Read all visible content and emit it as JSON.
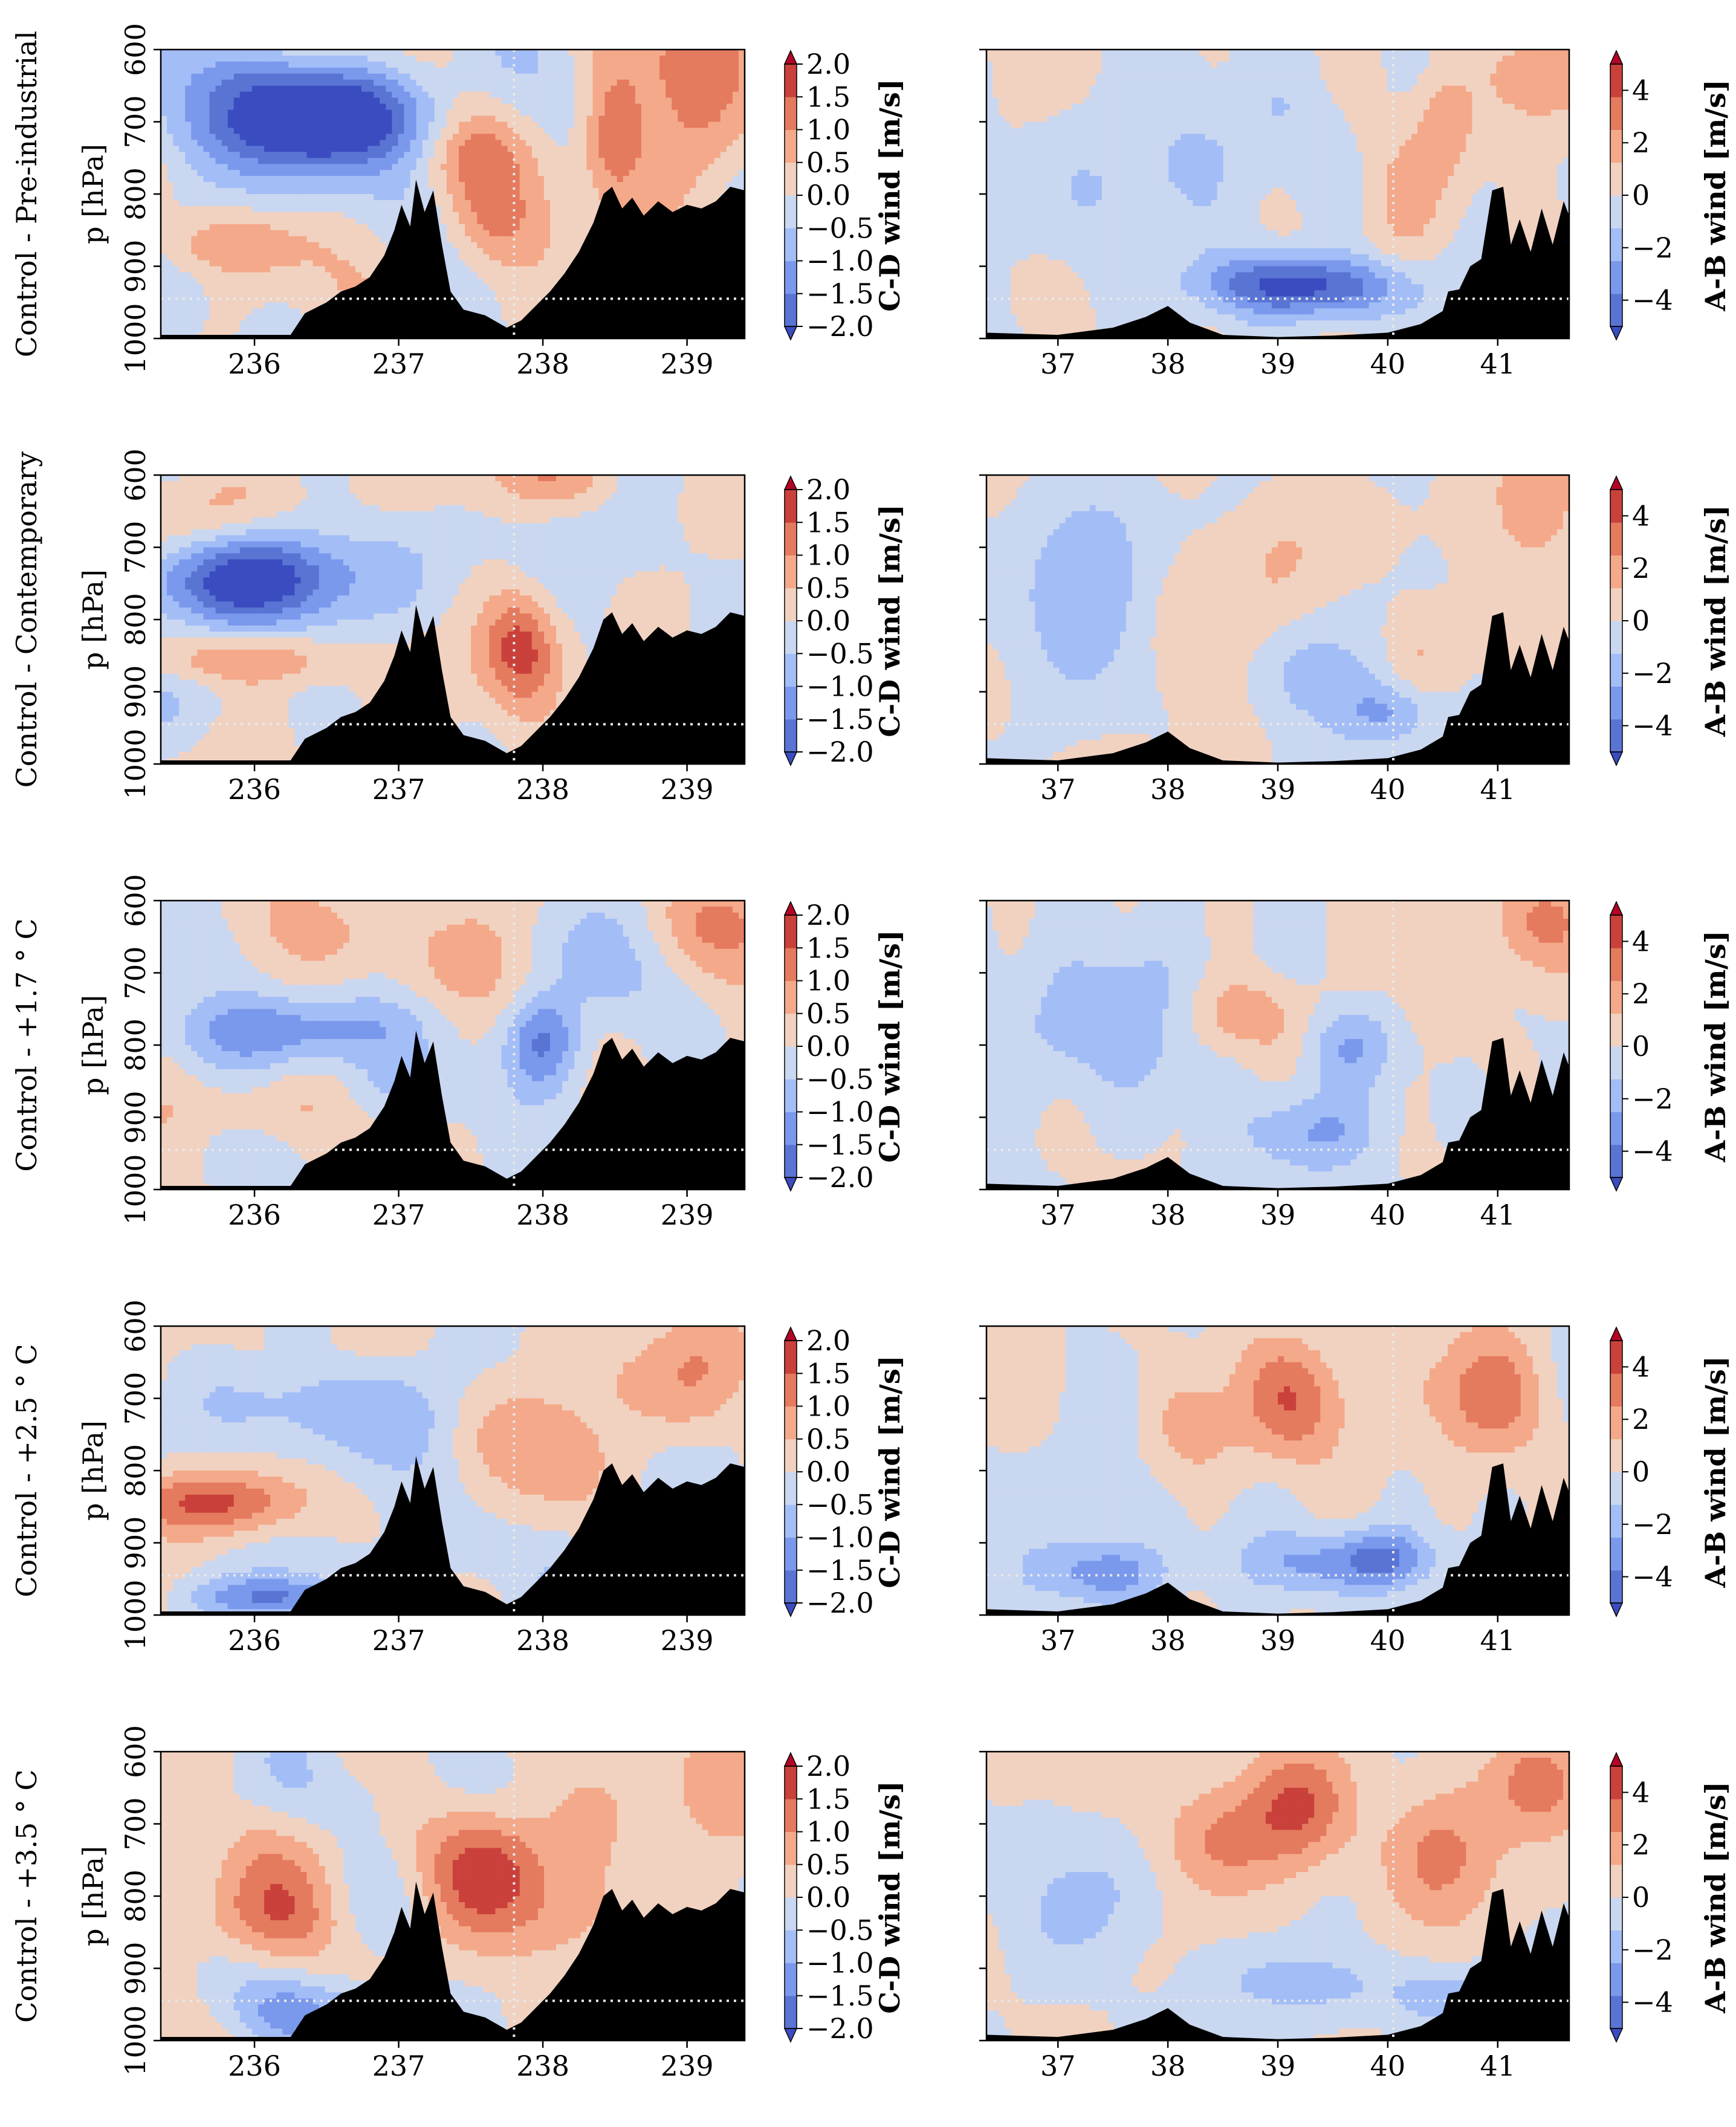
{
  "figure": {
    "row_labels": [
      "Control - Pre-industrial",
      "Control - Contemporary",
      "Control - +1.7$^\\circ$C",
      "Control - +2.5$^\\circ$C",
      "Control - +3.5$^\\circ$C"
    ],
    "row_labels_display": [
      "Control - Pre-industrial",
      "Control - Contemporary",
      "Control - +1.7 ° C",
      "Control - +2.5 ° C",
      "Control - +3.5 ° C"
    ],
    "ylabel": "p [hPa]",
    "yticks": [
      "600",
      "700",
      "800",
      "900",
      "1000"
    ]
  },
  "colors": {
    "levels_cd": [
      "#5a74d4",
      "#7a99ec",
      "#a3bdf7",
      "#cad7f0",
      "#f1d2c0",
      "#f4a98a",
      "#e47a5e",
      "#c9413a"
    ],
    "under": "#3b4cc0",
    "over": "#b40426",
    "terrain": "#000000",
    "guide": "#e8e8e8"
  },
  "chart_data": [
    {
      "type": "heatmap",
      "panel": "left",
      "subtype": "filled-contour cross-section",
      "x_ticks": [
        "236",
        "237",
        "238",
        "239"
      ],
      "xlim": [
        235.35,
        239.4
      ],
      "ylim": [
        1000,
        600
      ],
      "colorbar": {
        "label": "C-D wind [m/s]",
        "ticks": [
          "2.0",
          "1.5",
          "1.0",
          "0.5",
          "0.0",
          "−0.5",
          "−1.0",
          "−1.5",
          "−2.0"
        ],
        "range": [
          -2.0,
          2.0
        ],
        "extend": "both"
      },
      "guides": {
        "vertical_x": 237.8,
        "horizontal_p": 945
      },
      "rows": [
        {
          "blobs": [
            [
              236.6,
              690,
              -1.9,
              0.5,
              45
            ],
            [
              236.1,
              700,
              -1.4,
              0.6,
              60
            ],
            [
              237.55,
              745,
              1.0,
              0.25,
              45
            ],
            [
              238.5,
              720,
              1.4,
              0.15,
              60
            ],
            [
              239.1,
              680,
              1.2,
              0.25,
              80
            ],
            [
              235.8,
              870,
              0.9,
              0.35,
              30
            ],
            [
              237.6,
              845,
              1.0,
              0.25,
              50
            ],
            [
              238.9,
              600,
              0.6,
              0.4,
              50
            ],
            [
              235.9,
              630,
              -0.5,
              0.3,
              30
            ]
          ]
        },
        {
          "blobs": [
            [
              235.8,
              745,
              -2.0,
              0.5,
              40
            ],
            [
              236.3,
              740,
              -1.0,
              0.4,
              60
            ],
            [
              235.9,
              855,
              1.3,
              0.45,
              25
            ],
            [
              237.85,
              840,
              1.6,
              0.18,
              55
            ],
            [
              237.85,
              600,
              0.7,
              0.3,
              40
            ],
            [
              238.7,
              700,
              -0.7,
              0.3,
              60
            ],
            [
              235.8,
              640,
              0.6,
              0.4,
              40
            ],
            [
              238.3,
              600,
              0.5,
              0.3,
              40
            ],
            [
              239.2,
              640,
              0.4,
              0.3,
              50
            ]
          ]
        },
        {
          "blobs": [
            [
              236.2,
              780,
              -1.4,
              0.6,
              35
            ],
            [
              238.0,
              795,
              -1.6,
              0.18,
              45
            ],
            [
              238.4,
              690,
              -0.7,
              0.3,
              60
            ],
            [
              237.4,
              680,
              0.6,
              0.4,
              60
            ],
            [
              239.1,
              640,
              0.9,
              0.3,
              60
            ],
            [
              235.9,
              890,
              0.6,
              0.4,
              30
            ],
            [
              237.0,
              860,
              -0.5,
              0.3,
              30
            ],
            [
              236.3,
              640,
              0.4,
              0.4,
              40
            ]
          ]
        },
        {
          "blobs": [
            [
              235.7,
              845,
              1.5,
              0.45,
              30
            ],
            [
              236.6,
              710,
              -1.2,
              0.45,
              55
            ],
            [
              236.1,
              975,
              -1.4,
              0.35,
              20
            ],
            [
              237.7,
              760,
              0.8,
              0.3,
              60
            ],
            [
              239.1,
              680,
              1.0,
              0.3,
              80
            ],
            [
              238.3,
              660,
              0.4,
              0.3,
              50
            ],
            [
              236.2,
              640,
              0.5,
              0.4,
              40
            ],
            [
              237.3,
              920,
              -0.5,
              0.3,
              40
            ]
          ]
        },
        {
          "blobs": [
            [
              237.65,
              765,
              1.8,
              0.3,
              60
            ],
            [
              236.0,
              830,
              0.9,
              0.5,
              45
            ],
            [
              236.2,
              740,
              0.4,
              0.6,
              50
            ],
            [
              236.5,
              955,
              -1.0,
              0.4,
              30
            ],
            [
              238.9,
              650,
              0.9,
              0.4,
              70
            ],
            [
              236.8,
              660,
              -0.5,
              0.3,
              40
            ],
            [
              238.1,
              840,
              0.6,
              0.3,
              50
            ]
          ]
        }
      ]
    },
    {
      "type": "heatmap",
      "panel": "right",
      "subtype": "filled-contour cross-section",
      "x_ticks": [
        "37",
        "38",
        "39",
        "40",
        "41"
      ],
      "xlim": [
        36.35,
        41.65
      ],
      "ylim": [
        1000,
        600
      ],
      "colorbar": {
        "label": "A-B wind [m/s]",
        "ticks": [
          "4",
          "2",
          "0",
          "−2",
          "−4"
        ],
        "range": [
          -5,
          5
        ],
        "extend": "both"
      },
      "guides": {
        "vertical_x": 40.05,
        "horizontal_p": 945
      },
      "rows": [
        {
          "blobs": [
            [
              38.9,
              925,
              -3.8,
              0.5,
              30
            ],
            [
              39.6,
              930,
              -3.5,
              0.5,
              30
            ],
            [
              37.7,
              770,
              -1.7,
              0.6,
              80
            ],
            [
              39.0,
              700,
              -1.0,
              0.5,
              60
            ],
            [
              40.1,
              800,
              1.2,
              0.3,
              80
            ],
            [
              40.5,
              700,
              2.0,
              0.2,
              60
            ],
            [
              41.4,
              640,
              2.5,
              0.3,
              50
            ],
            [
              37.4,
              700,
              0.6,
              0.4,
              60
            ]
          ]
        },
        {
          "blobs": [
            [
              38.3,
              830,
              1.5,
              0.4,
              80
            ],
            [
              39.0,
              720,
              1.5,
              0.3,
              60
            ],
            [
              40.3,
              850,
              1.8,
              0.25,
              50
            ],
            [
              41.4,
              640,
              2.5,
              0.3,
              60
            ],
            [
              37.3,
              760,
              -2.5,
              0.5,
              80
            ],
            [
              39.3,
              880,
              -2.2,
              0.5,
              50
            ],
            [
              40.0,
              930,
              -2.5,
              0.3,
              30
            ]
          ]
        },
        {
          "blobs": [
            [
              38.6,
              760,
              2.5,
              0.45,
              40
            ],
            [
              37.6,
              760,
              -2.5,
              0.6,
              70
            ],
            [
              39.6,
              800,
              -2.5,
              0.3,
              40
            ],
            [
              39.3,
              920,
              -2.5,
              0.45,
              40
            ],
            [
              40.4,
              700,
              1.0,
              0.3,
              60
            ],
            [
              41.4,
              630,
              3.0,
              0.3,
              50
            ]
          ]
        },
        {
          "blobs": [
            [
              39.2,
              700,
              3.5,
              0.35,
              60
            ],
            [
              40.9,
              700,
              3.2,
              0.4,
              60
            ],
            [
              38.2,
              750,
              2.0,
              0.3,
              60
            ],
            [
              37.4,
              940,
              -3.0,
              0.45,
              30
            ],
            [
              39.4,
              930,
              -2.8,
              0.5,
              30
            ],
            [
              40.0,
              920,
              -3.0,
              0.3,
              30
            ],
            [
              37.6,
              830,
              -1.0,
              0.4,
              60
            ]
          ]
        },
        {
          "blobs": [
            [
              39.2,
              680,
              3.5,
              0.35,
              60
            ],
            [
              38.4,
              720,
              2.5,
              0.4,
              60
            ],
            [
              40.5,
              740,
              2.8,
              0.4,
              70
            ],
            [
              41.4,
              640,
              3.0,
              0.3,
              50
            ],
            [
              37.3,
              800,
              -1.5,
              0.5,
              60
            ],
            [
              39.2,
              920,
              -2.0,
              0.5,
              30
            ],
            [
              40.5,
              940,
              -2.0,
              0.4,
              30
            ]
          ]
        }
      ]
    }
  ]
}
